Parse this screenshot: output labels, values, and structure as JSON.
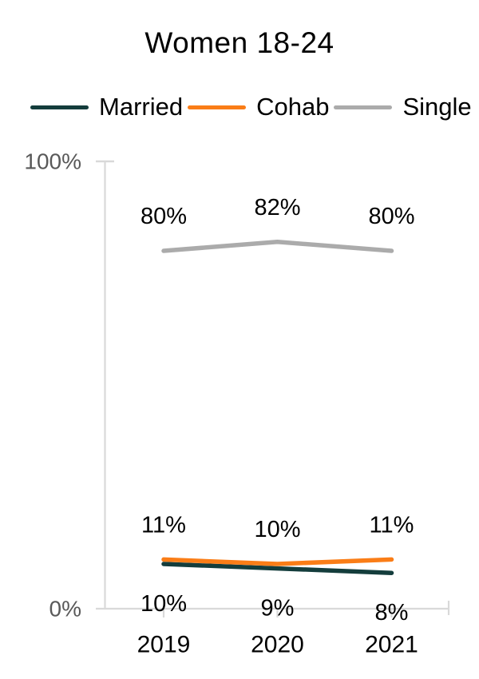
{
  "title": "Women 18-24",
  "chart_data": {
    "type": "line",
    "title": "Women 18-24",
    "categories": [
      "2019",
      "2020",
      "2021"
    ],
    "series": [
      {
        "name": "Married",
        "color": "#143D3C",
        "values": [
          10,
          9,
          8
        ],
        "labels": [
          "10%",
          "9%",
          "8%"
        ],
        "label_position": "below"
      },
      {
        "name": "Cohab",
        "color": "#FA7D17",
        "values": [
          11,
          10,
          11
        ],
        "labels": [
          "11%",
          "10%",
          "11%"
        ],
        "label_position": "above"
      },
      {
        "name": "Single",
        "color": "#ABABAB",
        "values": [
          80,
          82,
          80
        ],
        "labels": [
          "80%",
          "82%",
          "80%"
        ],
        "label_position": "above"
      }
    ],
    "xlabel": "",
    "ylabel": "",
    "ylim": [
      0,
      100
    ],
    "yticks": [
      "0%",
      "100%"
    ],
    "grid": false,
    "legend_position": "top"
  },
  "colors": {
    "axis_line": "#D9D9D9",
    "axis_text": "#595959",
    "label_text": "#000000",
    "background": "#FFFFFF"
  }
}
